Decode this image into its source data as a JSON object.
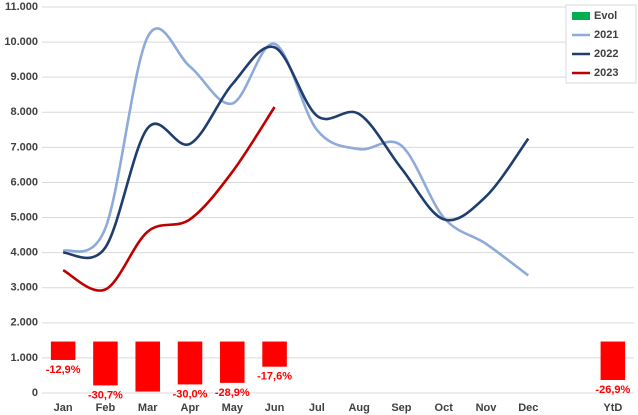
{
  "chart_data": {
    "type": "combo",
    "categories": [
      "Jan",
      "Feb",
      "Mar",
      "Apr",
      "May",
      "Jun",
      "Jul",
      "Aug",
      "Sep",
      "Oct",
      "Nov",
      "Dec",
      null,
      "YtD"
    ],
    "ylim": [
      0,
      11000
    ],
    "yticks": [
      0,
      {
        "value": 1000,
        "label": "1.000"
      },
      {
        "value": 2000,
        "label": "2.000"
      },
      {
        "value": 3000,
        "label": "3.000"
      },
      {
        "value": 4000,
        "label": "4.000"
      },
      {
        "value": 5000,
        "label": "5.000"
      },
      {
        "value": 6000,
        "label": "6.000"
      },
      {
        "value": 7000,
        "label": "7.000"
      },
      {
        "value": 8000,
        "label": "8.000"
      },
      {
        "value": 9000,
        "label": "9.000"
      },
      {
        "value": 10000,
        "label": "10.000"
      },
      {
        "value": 11000,
        "label": "11.000"
      }
    ],
    "y2lim": [
      -36,
      234
    ],
    "grid": true,
    "legend": "top-right",
    "series": [
      {
        "name": "Evol",
        "type": "bar",
        "axis": "y2",
        "color": "#ff0000",
        "legend_color": "#00b050",
        "values": [
          -12.9,
          -30.7,
          -35,
          -30.0,
          -28.9,
          -17.6,
          null,
          null,
          null,
          null,
          null,
          null,
          null,
          -26.9
        ],
        "value_labels": [
          "-12,9%",
          "-30,7%",
          null,
          "-30,0%",
          "-28,9%",
          "-17,6%",
          null,
          null,
          null,
          null,
          null,
          null,
          null,
          "-26,9%"
        ]
      },
      {
        "name": "2021",
        "type": "line",
        "color": "#8eaad8",
        "values": [
          4050,
          4700,
          10150,
          9300,
          8250,
          9950,
          7500,
          6950,
          7050,
          5000,
          4250,
          3350,
          null,
          null
        ]
      },
      {
        "name": "2022",
        "type": "line",
        "color": "#1f3d6e",
        "values": [
          4000,
          4150,
          7550,
          7100,
          8800,
          9850,
          7900,
          7950,
          6400,
          4950,
          5600,
          7250,
          null,
          null
        ]
      },
      {
        "name": "2023",
        "type": "line",
        "color": "#c00000",
        "values": [
          3500,
          2950,
          4600,
          4950,
          6300,
          8150,
          null,
          null,
          null,
          null,
          null,
          null,
          null,
          null
        ]
      }
    ]
  }
}
